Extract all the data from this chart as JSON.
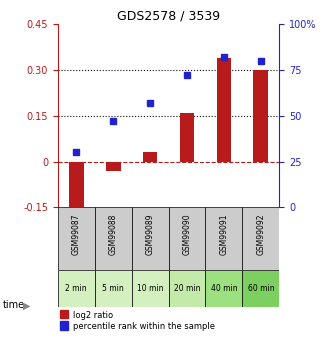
{
  "title": "GDS2578 / 3539",
  "samples": [
    "GSM99087",
    "GSM99088",
    "GSM99089",
    "GSM99090",
    "GSM99091",
    "GSM99092"
  ],
  "time_labels": [
    "2 min",
    "5 min",
    "10 min",
    "20 min",
    "40 min",
    "60 min"
  ],
  "log2_ratio": [
    -0.18,
    -0.03,
    0.03,
    0.16,
    0.34,
    0.3
  ],
  "percentile_rank": [
    30,
    47,
    57,
    72,
    82,
    80
  ],
  "left_ylim": [
    -0.15,
    0.45
  ],
  "right_ylim": [
    0,
    100
  ],
  "left_yticks": [
    -0.15,
    0,
    0.15,
    0.3,
    0.45
  ],
  "right_yticks": [
    0,
    25,
    50,
    75,
    100
  ],
  "left_ytick_labels": [
    "-0.15",
    "0",
    "0.15",
    "0.30",
    "0.45"
  ],
  "right_ytick_labels": [
    "0",
    "25",
    "50",
    "75",
    "100%"
  ],
  "hlines": [
    0.15,
    0.3
  ],
  "bar_color": "#b81b1b",
  "dot_color": "#2222cc",
  "zero_line_color": "#b81b1b",
  "hline_color": "#111111",
  "time_bg_colors": [
    "#d4f0c0",
    "#d4f0c0",
    "#d4f0c0",
    "#c4eaaa",
    "#9de080",
    "#7dd060"
  ],
  "sample_bg_color": "#cccccc",
  "legend_bar_label": "log2 ratio",
  "legend_dot_label": "percentile rank within the sample",
  "time_arrow_color": "#888888",
  "bar_width": 0.4
}
